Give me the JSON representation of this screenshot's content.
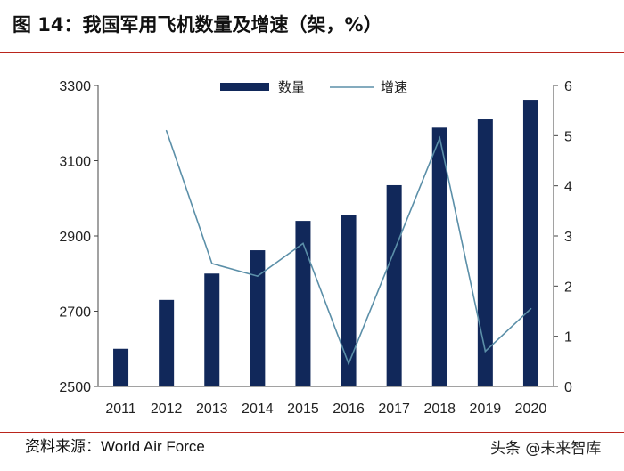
{
  "title": "图 14：我国军用飞机数量及增速（架，%）",
  "source": "资料来源：World Air Force",
  "watermark": "头条 @未来智库",
  "colors": {
    "bar": "#11285a",
    "line": "#5b8fa8",
    "accent": "#b9251c"
  },
  "chart_data": {
    "type": "bar",
    "categories": [
      "2011",
      "2012",
      "2013",
      "2014",
      "2015",
      "2016",
      "2017",
      "2018",
      "2019",
      "2020"
    ],
    "series": [
      {
        "name": "数量",
        "type": "bar",
        "axis": "left",
        "values": [
          2600,
          2730,
          2800,
          2862,
          2940,
          2955,
          3035,
          3188,
          3210,
          3262
        ]
      },
      {
        "name": "增速",
        "type": "line",
        "axis": "right",
        "values": [
          null,
          5.1,
          2.45,
          2.2,
          2.85,
          0.45,
          2.7,
          4.95,
          0.7,
          1.55
        ]
      }
    ],
    "y_left": {
      "min": 2500,
      "max": 3300,
      "ticks": [
        2500,
        2700,
        2900,
        3100,
        3300
      ]
    },
    "y_right": {
      "min": 0,
      "max": 6,
      "ticks": [
        0,
        1,
        2,
        3,
        4,
        5,
        6
      ]
    },
    "legend": "top-center",
    "grid": false
  }
}
